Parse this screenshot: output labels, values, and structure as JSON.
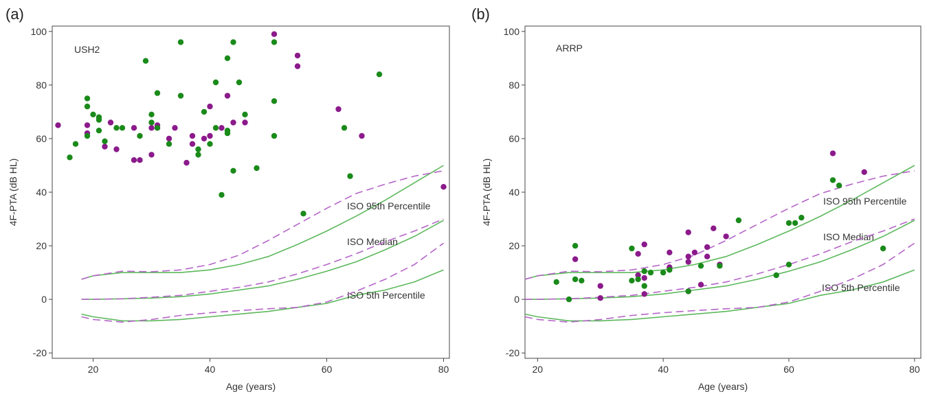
{
  "chart_data": [
    {
      "type": "scatter",
      "panel_label": "(a)",
      "title": "USH2",
      "xlabel": "Age (years)",
      "ylabel": "4F-PTA (dB HL)",
      "xlim": [
        13,
        81
      ],
      "ylim": [
        -22,
        102
      ],
      "xticks": [
        20,
        40,
        60,
        80
      ],
      "yticks": [
        -20,
        0,
        20,
        40,
        60,
        80,
        100
      ],
      "grid": false,
      "colors": {
        "green": "#1a8a1a",
        "purple": "#8b1a8b",
        "green_line": "#5cb85c",
        "purple_line": "#b565c8"
      },
      "series": [
        {
          "color": "purple",
          "points": [
            [
              14,
              65
            ],
            [
              19,
              65
            ],
            [
              19,
              62
            ],
            [
              22,
              57
            ],
            [
              23,
              66
            ],
            [
              24,
              56
            ],
            [
              27,
              64
            ],
            [
              27,
              52
            ],
            [
              28,
              52
            ],
            [
              30,
              64
            ],
            [
              30,
              54
            ],
            [
              31,
              64
            ],
            [
              31,
              65
            ],
            [
              33,
              60
            ],
            [
              34,
              64
            ],
            [
              36,
              51
            ],
            [
              37,
              58
            ],
            [
              37,
              61
            ],
            [
              39,
              60
            ],
            [
              40,
              61
            ],
            [
              40,
              72
            ],
            [
              42,
              64
            ],
            [
              43,
              76
            ],
            [
              44,
              66
            ],
            [
              46,
              66
            ],
            [
              51,
              99
            ],
            [
              55,
              91
            ],
            [
              55,
              87
            ],
            [
              62,
              71
            ],
            [
              66,
              61
            ],
            [
              80,
              42
            ]
          ]
        },
        {
          "color": "green",
          "points": [
            [
              16,
              53
            ],
            [
              17,
              58
            ],
            [
              19,
              75
            ],
            [
              19,
              72
            ],
            [
              19,
              61
            ],
            [
              20,
              69
            ],
            [
              21,
              68
            ],
            [
              21,
              67
            ],
            [
              21,
              63
            ],
            [
              22,
              59
            ],
            [
              24,
              64
            ],
            [
              25,
              64
            ],
            [
              28,
              61
            ],
            [
              29,
              89
            ],
            [
              30,
              69
            ],
            [
              30,
              66
            ],
            [
              31,
              77
            ],
            [
              31,
              64
            ],
            [
              33,
              58
            ],
            [
              35,
              96
            ],
            [
              35,
              76
            ],
            [
              38,
              54
            ],
            [
              38,
              56
            ],
            [
              39,
              70
            ],
            [
              40,
              58
            ],
            [
              41,
              64
            ],
            [
              41,
              81
            ],
            [
              42,
              39
            ],
            [
              43,
              90
            ],
            [
              43,
              62
            ],
            [
              43,
              63
            ],
            [
              44,
              96
            ],
            [
              44,
              48
            ],
            [
              45,
              81
            ],
            [
              46,
              69
            ],
            [
              48,
              49
            ],
            [
              51,
              96
            ],
            [
              51,
              74
            ],
            [
              51,
              61
            ],
            [
              56,
              32
            ],
            [
              63,
              64
            ],
            [
              64,
              46
            ],
            [
              69,
              84
            ]
          ]
        }
      ],
      "curves": [
        {
          "label": "ISO 95th Percentile",
          "color": "green",
          "style": "solid",
          "x": [
            18,
            20,
            25,
            30,
            35,
            40,
            45,
            50,
            55,
            60,
            65,
            70,
            75,
            80
          ],
          "y": [
            7.5,
            8.8,
            10,
            10,
            10,
            11,
            13,
            16,
            20.5,
            25.5,
            31,
            37,
            43.5,
            50
          ]
        },
        {
          "label": "",
          "color": "purple",
          "style": "dashed",
          "x": [
            18,
            20,
            25,
            30,
            35,
            40,
            45,
            50,
            55,
            60,
            65,
            70,
            75,
            80
          ],
          "y": [
            7.5,
            8.8,
            10.5,
            10.3,
            11,
            13,
            16.5,
            22,
            28,
            34,
            39.5,
            43,
            46,
            48
          ]
        },
        {
          "label": "ISO Median",
          "color": "green",
          "style": "solid",
          "x": [
            18,
            20,
            25,
            30,
            35,
            40,
            45,
            50,
            55,
            60,
            65,
            70,
            75,
            80
          ],
          "y": [
            0,
            0,
            0.2,
            0.5,
            1,
            2,
            3.5,
            5,
            7.5,
            10.5,
            14,
            18.5,
            23.5,
            29.5
          ]
        },
        {
          "label": "",
          "color": "purple",
          "style": "dashed",
          "x": [
            18,
            20,
            25,
            30,
            35,
            40,
            45,
            50,
            55,
            60,
            65,
            70,
            75,
            80
          ],
          "y": [
            0,
            0,
            0.2,
            0.8,
            1.5,
            3,
            4.5,
            6.5,
            9.5,
            13,
            17,
            21.5,
            25.5,
            30
          ]
        },
        {
          "label": "ISO 5th Percentile",
          "color": "green",
          "style": "solid",
          "x": [
            18,
            20,
            25,
            30,
            35,
            40,
            45,
            50,
            55,
            60,
            65,
            70,
            75,
            80
          ],
          "y": [
            -5.5,
            -6.5,
            -8,
            -8,
            -7.5,
            -6.5,
            -5.5,
            -4.5,
            -3,
            -1.5,
            1.5,
            3.5,
            6.5,
            11
          ]
        },
        {
          "label": "",
          "color": "purple",
          "style": "dashed",
          "x": [
            18,
            20,
            25,
            30,
            35,
            40,
            45,
            50,
            55,
            60,
            65,
            70,
            75,
            80
          ],
          "y": [
            -6.5,
            -7.5,
            -8.5,
            -7.5,
            -6,
            -5,
            -4.2,
            -3.5,
            -3,
            -1,
            3,
            7.5,
            13,
            21
          ]
        }
      ]
    },
    {
      "type": "scatter",
      "panel_label": "(b)",
      "title": "ARRP",
      "xlabel": "Age (years)",
      "ylabel": "4F-PTA (dB HL)",
      "xlim": [
        18,
        81
      ],
      "ylim": [
        -22,
        102
      ],
      "xticks": [
        20,
        40,
        60,
        80
      ],
      "yticks": [
        -20,
        0,
        20,
        40,
        60,
        80,
        100
      ],
      "grid": false,
      "colors": {
        "green": "#1a8a1a",
        "purple": "#8b1a8b",
        "green_line": "#5cb85c",
        "purple_line": "#b565c8"
      },
      "series": [
        {
          "color": "purple",
          "points": [
            [
              26,
              15
            ],
            [
              30,
              5
            ],
            [
              30,
              0.5
            ],
            [
              36,
              17
            ],
            [
              36,
              9
            ],
            [
              37,
              8
            ],
            [
              37,
              20.5
            ],
            [
              37,
              2
            ],
            [
              41,
              17.5
            ],
            [
              41,
              12
            ],
            [
              44,
              25
            ],
            [
              44,
              16
            ],
            [
              44,
              14
            ],
            [
              44,
              3
            ],
            [
              45,
              17.5
            ],
            [
              46,
              5.5
            ],
            [
              47,
              19.5
            ],
            [
              47,
              16
            ],
            [
              48,
              26.5
            ],
            [
              49,
              13
            ],
            [
              50,
              23.5
            ],
            [
              67,
              54.5
            ],
            [
              72,
              47.5
            ]
          ]
        },
        {
          "color": "green",
          "points": [
            [
              23,
              6.5
            ],
            [
              25,
              0
            ],
            [
              26,
              20
            ],
            [
              26,
              7.5
            ],
            [
              27,
              7
            ],
            [
              35,
              19
            ],
            [
              35,
              7
            ],
            [
              36,
              7.5
            ],
            [
              37,
              5
            ],
            [
              37,
              10.5
            ],
            [
              38,
              10
            ],
            [
              40,
              10
            ],
            [
              41,
              11
            ],
            [
              44,
              3
            ],
            [
              46,
              12.5
            ],
            [
              49,
              12.5
            ],
            [
              52,
              29.5
            ],
            [
              58,
              9
            ],
            [
              60,
              28.5
            ],
            [
              60,
              13
            ],
            [
              61,
              28.5
            ],
            [
              62,
              30.5
            ],
            [
              67,
              44.5
            ],
            [
              68,
              42.5
            ],
            [
              75,
              19
            ]
          ]
        }
      ],
      "curves": [
        {
          "label": "ISO 95th Percentile",
          "color": "green",
          "style": "solid",
          "x": [
            18,
            20,
            25,
            30,
            35,
            40,
            45,
            50,
            55,
            60,
            65,
            70,
            75,
            80
          ],
          "y": [
            7.5,
            8.8,
            10,
            10,
            10,
            11,
            13,
            16,
            20.5,
            25.5,
            31,
            37,
            43.5,
            50
          ]
        },
        {
          "label": "",
          "color": "purple",
          "style": "dashed",
          "x": [
            18,
            20,
            25,
            30,
            35,
            40,
            45,
            50,
            55,
            60,
            65,
            70,
            75,
            80
          ],
          "y": [
            7.5,
            8.8,
            10.5,
            10.3,
            11,
            13,
            16.5,
            22,
            28,
            34,
            39.5,
            43,
            46,
            48
          ]
        },
        {
          "label": "ISO Median",
          "color": "green",
          "style": "solid",
          "x": [
            18,
            20,
            25,
            30,
            35,
            40,
            45,
            50,
            55,
            60,
            65,
            70,
            75,
            80
          ],
          "y": [
            0,
            0,
            0.2,
            0.5,
            1,
            2,
            3.5,
            5,
            7.5,
            10.5,
            14,
            18.5,
            23.5,
            29.5
          ]
        },
        {
          "label": "",
          "color": "purple",
          "style": "dashed",
          "x": [
            18,
            20,
            25,
            30,
            35,
            40,
            45,
            50,
            55,
            60,
            65,
            70,
            75,
            80
          ],
          "y": [
            0,
            0,
            0.2,
            0.8,
            1.5,
            3,
            4.5,
            6.5,
            9.5,
            13,
            17,
            21.5,
            25.5,
            30
          ]
        },
        {
          "label": "ISO 5th Percentile",
          "color": "green",
          "style": "solid",
          "x": [
            18,
            20,
            25,
            30,
            35,
            40,
            45,
            50,
            55,
            60,
            65,
            70,
            75,
            80
          ],
          "y": [
            -5.5,
            -6.5,
            -8,
            -8,
            -7.5,
            -6.5,
            -5.5,
            -4.5,
            -3,
            -1.5,
            1.5,
            3.5,
            6.5,
            11
          ]
        },
        {
          "label": "",
          "color": "purple",
          "style": "dashed",
          "x": [
            18,
            20,
            25,
            30,
            35,
            40,
            45,
            50,
            55,
            60,
            65,
            70,
            75,
            80
          ],
          "y": [
            -6.5,
            -7.5,
            -8.5,
            -7.5,
            -6,
            -5,
            -4.2,
            -3.5,
            -3,
            -1,
            3,
            7.5,
            13,
            21
          ]
        }
      ]
    }
  ]
}
